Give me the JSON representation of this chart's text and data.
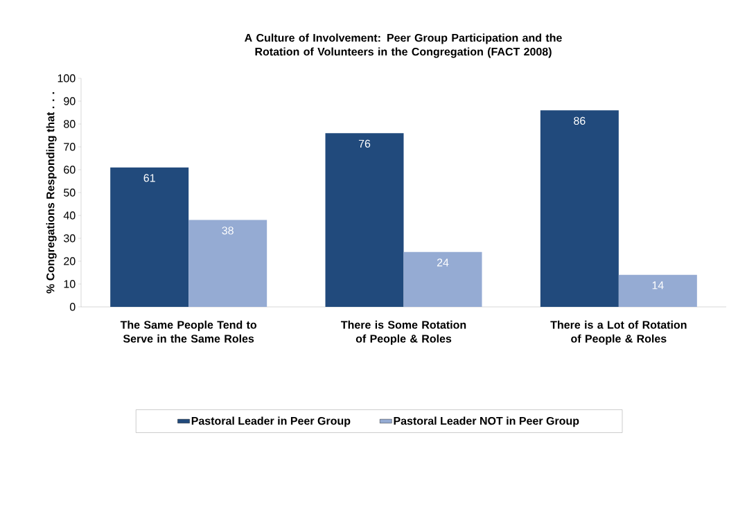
{
  "chart_data": {
    "type": "bar",
    "title": "A Culture of Involvement:  Peer Group Participation and the Rotation of Volunteers in the Congregation (FACT 2008)",
    "ylabel": "% Congregations Responding that . . .",
    "categories": [
      "The Same People Tend to Serve in the Same Roles",
      "There is Some Rotation of People & Roles",
      "There is a Lot of Rotation of People & Roles"
    ],
    "series": [
      {
        "name": "Pastoral Leader in Peer Group",
        "color": "#214a7c",
        "values": [
          61,
          76,
          86
        ]
      },
      {
        "name": "Pastoral Leader NOT in Peer Group",
        "color": "#95abd3",
        "values": [
          38,
          24,
          14
        ]
      }
    ],
    "ylim": [
      0,
      100
    ],
    "yticks": [
      0,
      10,
      20,
      30,
      40,
      50,
      60,
      70,
      80,
      90,
      100
    ],
    "data_labels": true,
    "legend": "bottom",
    "grid": false
  }
}
